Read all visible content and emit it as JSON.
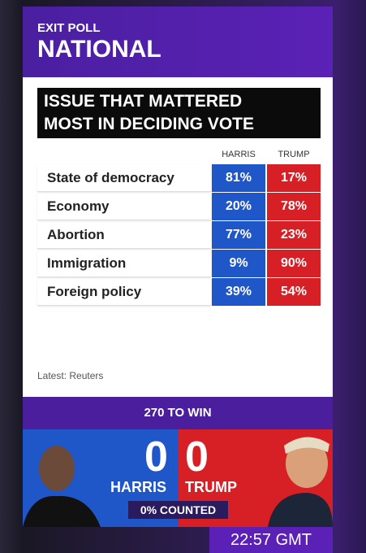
{
  "header": {
    "kicker": "EXIT POLL",
    "title": "NATIONAL"
  },
  "question": [
    "ISSUE THAT MATTERED",
    "MOST IN DECIDING VOTE"
  ],
  "table": {
    "columns": [
      "HARRIS",
      "TRUMP"
    ],
    "rows": [
      [
        "State of democracy",
        "81%",
        "17%"
      ],
      [
        "Economy",
        "20%",
        "78%"
      ],
      [
        "Abortion",
        "77%",
        "23%"
      ],
      [
        "Immigration",
        "9%",
        "90%"
      ],
      [
        "Foreign policy",
        "39%",
        "54%"
      ]
    ]
  },
  "source": "Latest: Reuters",
  "banner": "270 TO WIN",
  "tally": {
    "harris_votes": "0",
    "trump_votes": "0",
    "harris": "HARRIS",
    "trump": "TRUMP",
    "counted": "0% COUNTED"
  },
  "time": "22:57 GMT"
}
